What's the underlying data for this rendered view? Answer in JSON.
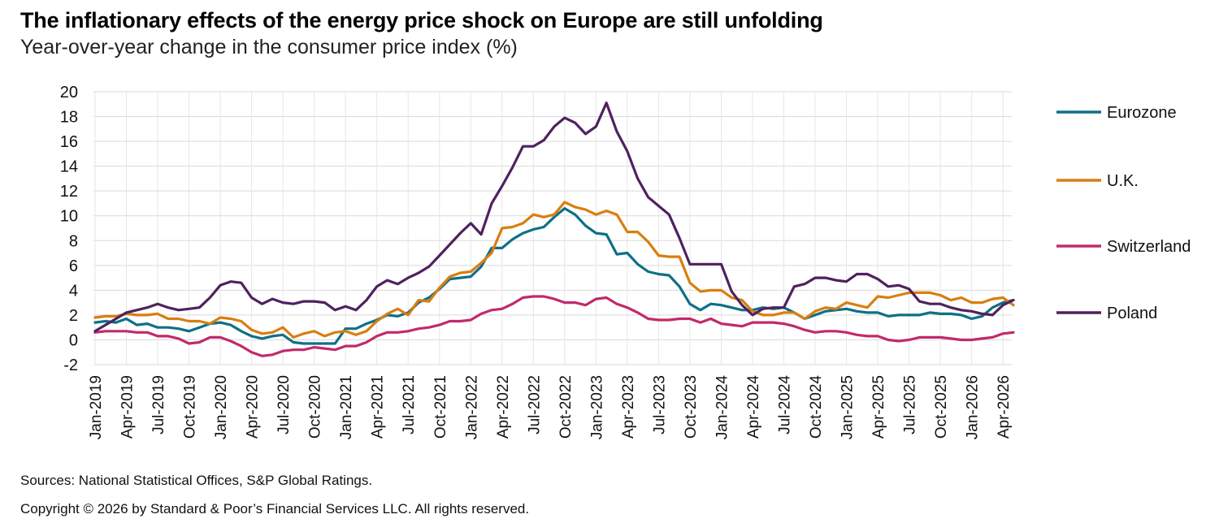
{
  "title": "The inflationary effects of the energy price shock on Europe are still unfolding",
  "subtitle": "Year-over-year change in the consumer price index (%)",
  "source": "Sources: National Statistical Offices, S&P Global Ratings.",
  "copyright": "Copyright © 2026 by Standard & Poor’s Financial Services LLC. All rights reserved.",
  "chart_data": {
    "type": "line",
    "title": "The inflationary effects of the energy price shock on Europe are still unfolding",
    "subtitle": "Year-over-year change in the consumer price index (%)",
    "xlabel": "",
    "ylabel": "",
    "ylim": [
      -2,
      20
    ],
    "yticks": [
      20,
      18,
      16,
      14,
      12,
      10,
      8,
      6,
      4,
      2,
      0,
      -2
    ],
    "grid": "horizontal",
    "legend_position": "right",
    "x_start": "Jan-2019",
    "tick_labels": [
      "Jan-2019",
      "Apr-2019",
      "Jul-2019",
      "Oct-2019",
      "Jan-2020",
      "Apr-2020",
      "Jul-2020",
      "Oct-2020",
      "Jan-2021",
      "Apr-2021",
      "Jul-2021",
      "Oct-2021",
      "Jan-2022",
      "Apr-2022",
      "Jul-2022",
      "Oct-2022",
      "Jan-2023",
      "Apr-2023",
      "Jul-2023",
      "Oct-2023",
      "Jan-2024",
      "Apr-2024",
      "Jul-2024",
      "Oct-2024",
      "Jan-2025",
      "Apr-2025",
      "Jul-2025",
      "Oct-2025",
      "Jan-2026",
      "Apr-2026"
    ],
    "series": [
      {
        "name": "Eurozone",
        "color": "#0e7087",
        "values": [
          1.4,
          1.5,
          1.4,
          1.7,
          1.2,
          1.3,
          1.0,
          1.0,
          0.9,
          0.7,
          1.0,
          1.3,
          1.4,
          1.2,
          0.7,
          0.3,
          0.1,
          0.3,
          0.4,
          -0.2,
          -0.3,
          -0.3,
          -0.3,
          -0.3,
          0.9,
          0.9,
          1.3,
          1.6,
          2.0,
          1.9,
          2.2,
          3.0,
          3.4,
          4.1,
          4.9,
          5.0,
          5.1,
          5.9,
          7.4,
          7.4,
          8.1,
          8.6,
          8.9,
          9.1,
          9.9,
          10.6,
          10.1,
          9.2,
          8.6,
          8.5,
          6.9,
          7.0,
          6.1,
          5.5,
          5.3,
          5.2,
          4.3,
          2.9,
          2.4,
          2.9,
          2.8,
          2.6,
          2.4,
          2.4,
          2.6,
          2.5,
          2.6,
          2.2,
          1.7,
          2.0,
          2.3,
          2.4,
          2.5,
          2.3,
          2.2,
          2.2,
          1.9,
          2.0,
          2.0,
          2.0,
          2.2,
          2.1,
          2.1,
          2.0,
          1.7,
          1.9,
          2.6,
          3.0,
          3.2
        ]
      },
      {
        "name": "U.K.",
        "color": "#d97e10",
        "values": [
          1.8,
          1.9,
          1.9,
          2.1,
          2.0,
          2.0,
          2.1,
          1.7,
          1.7,
          1.5,
          1.5,
          1.3,
          1.8,
          1.7,
          1.5,
          0.8,
          0.5,
          0.6,
          1.0,
          0.2,
          0.5,
          0.7,
          0.3,
          0.6,
          0.7,
          0.4,
          0.7,
          1.5,
          2.1,
          2.5,
          2.0,
          3.2,
          3.1,
          4.2,
          5.1,
          5.4,
          5.5,
          6.2,
          7.0,
          9.0,
          9.1,
          9.4,
          10.1,
          9.9,
          10.1,
          11.1,
          10.7,
          10.5,
          10.1,
          10.4,
          10.1,
          8.7,
          8.7,
          7.9,
          6.8,
          6.7,
          6.7,
          4.6,
          3.9,
          4.0,
          4.0,
          3.4,
          3.2,
          2.3,
          2.0,
          2.0,
          2.2,
          2.2,
          1.7,
          2.3,
          2.6,
          2.5,
          3.0,
          2.8,
          2.6,
          3.5,
          3.4,
          3.6,
          3.8,
          3.8,
          3.8,
          3.6,
          3.2,
          3.4,
          3.0,
          3.0,
          3.3,
          3.4,
          2.8
        ]
      },
      {
        "name": "Switzerland",
        "color": "#c22a6a",
        "values": [
          0.6,
          0.7,
          0.7,
          0.7,
          0.6,
          0.6,
          0.3,
          0.3,
          0.1,
          -0.3,
          -0.2,
          0.2,
          0.2,
          -0.1,
          -0.5,
          -1.0,
          -1.3,
          -1.2,
          -0.9,
          -0.8,
          -0.8,
          -0.6,
          -0.7,
          -0.8,
          -0.5,
          -0.5,
          -0.2,
          0.3,
          0.6,
          0.6,
          0.7,
          0.9,
          1.0,
          1.2,
          1.5,
          1.5,
          1.6,
          2.1,
          2.4,
          2.5,
          2.9,
          3.4,
          3.5,
          3.5,
          3.3,
          3.0,
          3.0,
          2.8,
          3.3,
          3.4,
          2.9,
          2.6,
          2.2,
          1.7,
          1.6,
          1.6,
          1.7,
          1.7,
          1.4,
          1.7,
          1.3,
          1.2,
          1.1,
          1.4,
          1.4,
          1.4,
          1.3,
          1.1,
          0.8,
          0.6,
          0.7,
          0.7,
          0.6,
          0.4,
          0.3,
          0.3,
          0.0,
          -0.1,
          0.0,
          0.2,
          0.2,
          0.2,
          0.1,
          0.0,
          0.0,
          0.1,
          0.2,
          0.5,
          0.6
        ]
      },
      {
        "name": "Poland",
        "color": "#4f2160",
        "values": [
          0.7,
          1.2,
          1.7,
          2.2,
          2.4,
          2.6,
          2.9,
          2.6,
          2.4,
          2.5,
          2.6,
          3.4,
          4.4,
          4.7,
          4.6,
          3.4,
          2.9,
          3.3,
          3.0,
          2.9,
          3.1,
          3.1,
          3.0,
          2.4,
          2.7,
          2.4,
          3.2,
          4.3,
          4.8,
          4.5,
          5.0,
          5.4,
          5.9,
          6.8,
          7.7,
          8.6,
          9.4,
          8.5,
          11.0,
          12.4,
          13.9,
          15.6,
          15.6,
          16.1,
          17.2,
          17.9,
          17.5,
          16.6,
          17.2,
          19.1,
          16.8,
          15.2,
          13.0,
          11.5,
          10.8,
          10.1,
          8.2,
          6.1,
          6.1,
          6.1,
          6.1,
          3.9,
          2.8,
          2.0,
          2.5,
          2.6,
          2.6,
          4.3,
          4.5,
          5.0,
          5.0,
          4.8,
          4.7,
          5.3,
          5.3,
          4.9,
          4.3,
          4.4,
          4.1,
          3.1,
          2.9,
          2.9,
          2.6,
          2.4,
          2.3,
          2.1,
          2.0,
          2.8,
          3.2
        ]
      }
    ]
  }
}
